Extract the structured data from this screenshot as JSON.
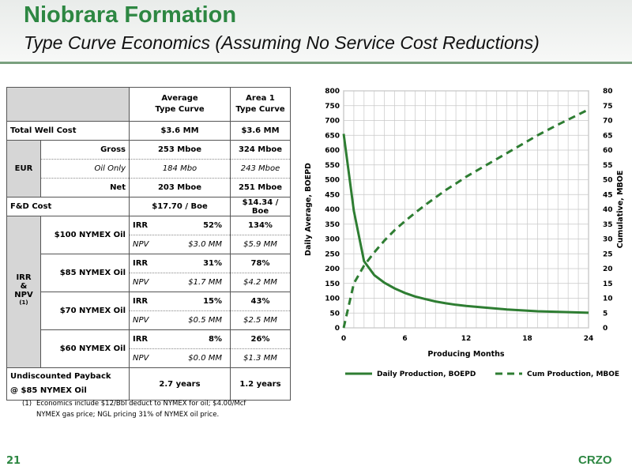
{
  "header": {
    "title": "Niobrara Formation",
    "subtitle": "Type Curve Economics (Assuming No Service Cost Reductions)"
  },
  "table": {
    "col1_header": "Average\nType Curve",
    "col2_header": "Area 1\nType Curve",
    "total_well_cost": {
      "label": "Total Well Cost",
      "avg": "$3.6 MM",
      "area1": "$3.6 MM"
    },
    "eur": {
      "label": "EUR",
      "rows": [
        {
          "label": "Gross",
          "avg": "253 Mboe",
          "area1": "324 Mboe"
        },
        {
          "label": "Oil Only",
          "avg": "184 Mbo",
          "area1": "243 Mboe"
        },
        {
          "label": "Net",
          "avg": "203 Mboe",
          "area1": "251 Mboe"
        }
      ]
    },
    "fd_cost": {
      "label": "F&D Cost",
      "avg": "$17.70 / Boe",
      "area1": "$14.34 / Boe"
    },
    "irr_npv_label_1": "IRR",
    "irr_npv_label_2": "&",
    "irr_npv_label_3": "NPV",
    "irr_npv_sup": "(1)",
    "irr_label": "IRR",
    "npv_label": "NPV",
    "scenarios": [
      {
        "label": "$100 NYMEX Oil",
        "irr_avg": "52%",
        "npv_avg": "$3.0 MM",
        "irr_area1": "134%",
        "npv_area1": "$5.9 MM"
      },
      {
        "label": "$85 NYMEX Oil",
        "irr_avg": "31%",
        "npv_avg": "$1.7 MM",
        "irr_area1": "78%",
        "npv_area1": "$4.2 MM"
      },
      {
        "label": "$70 NYMEX Oil",
        "irr_avg": "15%",
        "npv_avg": "$0.5 MM",
        "irr_area1": "43%",
        "npv_area1": "$2.5 MM"
      },
      {
        "label": "$60 NYMEX Oil",
        "irr_avg": "8%",
        "npv_avg": "$0.0 MM",
        "irr_area1": "26%",
        "npv_area1": "$1.3 MM"
      }
    ],
    "payback": {
      "label_1": "Undiscounted Payback",
      "label_2": "@ $85 NYMEX Oil",
      "avg": "2.7 years",
      "area1": "1.2 years"
    }
  },
  "footnote": {
    "num": "(1)",
    "text": "Economics include $12/Bbl deduct to NYMEX for oil; $4.00/Mcf NYMEX gas price; NGL pricing 31% of NYMEX oil price."
  },
  "page_number": "21",
  "logo": "CRZO",
  "colors": {
    "brand_green": "#2d8742",
    "line_green": "#2e7d32",
    "table_shade": "#d6d6d6"
  },
  "chart_data": {
    "type": "line",
    "title": "",
    "xlabel": "Producing Months",
    "ylabel": "Daily Average, BOEPD",
    "y2label": "Cumulative, MBOE",
    "xlim": [
      0,
      24
    ],
    "ylim": [
      0,
      800
    ],
    "y2lim": [
      0,
      80
    ],
    "x_ticks": [
      0,
      6,
      12,
      18,
      24
    ],
    "y_ticks": [
      0,
      50,
      100,
      150,
      200,
      250,
      300,
      350,
      400,
      450,
      500,
      550,
      600,
      650,
      700,
      750,
      800
    ],
    "y2_ticks": [
      0,
      5,
      10,
      15,
      20,
      25,
      30,
      35,
      40,
      45,
      50,
      55,
      60,
      65,
      70,
      75,
      80
    ],
    "grid": true,
    "legend_position": "bottom",
    "series": [
      {
        "name": "Daily Production, BOEPD",
        "axis": "left",
        "style": "solid",
        "x": [
          0,
          1,
          2,
          3,
          4,
          5,
          6,
          7,
          8,
          9,
          10,
          11,
          12,
          13,
          14,
          15,
          16,
          17,
          18,
          19,
          20,
          21,
          22,
          23,
          24
        ],
        "values": [
          655,
          395,
          225,
          178,
          152,
          133,
          118,
          106,
          97,
          89,
          83,
          78,
          74,
          71,
          68,
          65,
          62,
          60,
          58,
          56,
          55,
          54,
          53,
          52,
          51
        ]
      },
      {
        "name": "Cum Production, MBOE",
        "axis": "right",
        "style": "dashed",
        "x": [
          0,
          1,
          2,
          3,
          4,
          5,
          6,
          7,
          8,
          9,
          10,
          11,
          12,
          13,
          14,
          15,
          16,
          17,
          18,
          19,
          20,
          21,
          22,
          23,
          24
        ],
        "values": [
          0,
          15,
          21,
          25.5,
          29.5,
          33,
          36,
          38.8,
          41.5,
          44,
          46.5,
          48.7,
          51,
          53,
          55,
          57,
          59,
          61,
          63,
          65,
          66.8,
          68.6,
          70.3,
          72,
          73.7
        ]
      }
    ]
  }
}
